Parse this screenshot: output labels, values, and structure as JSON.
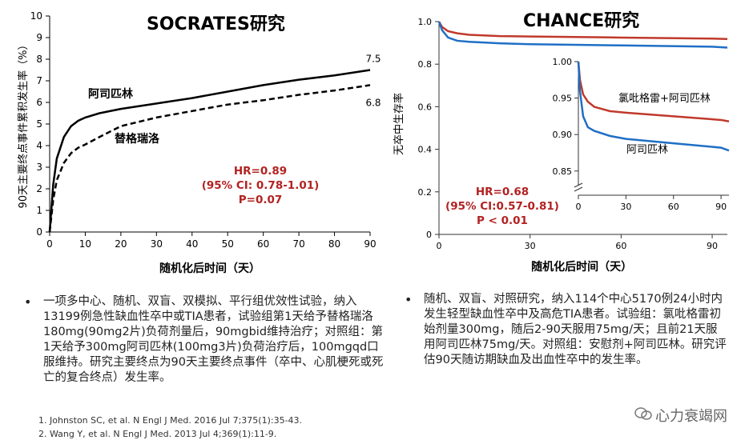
{
  "left": {
    "title": "SOCRATES研究",
    "chart_data": {
      "type": "line",
      "xlabel": "随机化后时间（天）",
      "ylabel": "90天主要终点事件累积发生率（%）",
      "xlim": [
        0,
        90
      ],
      "ylim": [
        0,
        10
      ],
      "xticks": [
        0,
        10,
        20,
        30,
        40,
        50,
        60,
        70,
        80,
        90
      ],
      "yticks": [
        0,
        1,
        2,
        3,
        4,
        5,
        6,
        7,
        8,
        9,
        10
      ],
      "series": [
        {
          "name": "阿司匹林",
          "style": "solid",
          "color": "#000000",
          "end_label": "7.5",
          "x": [
            0,
            1,
            2,
            4,
            6,
            8,
            10,
            14,
            20,
            30,
            40,
            50,
            60,
            70,
            80,
            90
          ],
          "y": [
            0,
            2.2,
            3.4,
            4.4,
            4.9,
            5.15,
            5.3,
            5.5,
            5.7,
            5.95,
            6.2,
            6.5,
            6.8,
            7.05,
            7.25,
            7.5
          ]
        },
        {
          "name": "替格瑞洛",
          "style": "dashed",
          "color": "#000000",
          "end_label": "6.8",
          "x": [
            0,
            1,
            2,
            4,
            6,
            8,
            10,
            14,
            20,
            30,
            40,
            50,
            60,
            70,
            80,
            90
          ],
          "y": [
            0,
            1.5,
            2.4,
            3.2,
            3.65,
            3.9,
            4.05,
            4.4,
            4.9,
            5.3,
            5.6,
            5.9,
            6.1,
            6.35,
            6.55,
            6.8
          ]
        }
      ],
      "annotation": {
        "lines": [
          "HR=0.89",
          "(95% CI: 0.78-1.01)",
          "P=0.07"
        ],
        "color": "#b22222"
      }
    },
    "bullet": "一项多中心、随机、双盲、双模拟、平行组优效性试验，纳入13199例急性缺血性卒中或TIA患者，试验组第1天给予替格瑞洛180mg(90mg2片)负荷剂量后，90mgbid维持治疗；对照组：第1天给予300mg阿司匹林(100mg3片)负荷治疗后，100mgqd口服维持。研究主要终点为90天主要终点事件（卒中、心肌梗死或死亡的复合终点）发生率。",
    "refs": [
      "1.   Johnston SC, et al. N Engl J Med. 2016 Jul 7;375(1):35-43.",
      "2.   Wang Y, et al. N Engl J Med. 2013 Jul 4;369(1):11-9."
    ]
  },
  "right": {
    "title": "CHANCE研究",
    "chart_data": {
      "type": "line",
      "xlabel": "随机化后时间（天）",
      "ylabel": "无卒中生存率",
      "xlim": [
        0,
        95
      ],
      "ylim": [
        0,
        1.0
      ],
      "xticks": [
        0,
        30,
        60,
        90
      ],
      "yticks": [
        "0",
        "0.2",
        "0.4",
        "0.6",
        "0.8",
        "1.0"
      ],
      "series": [
        {
          "name": "氯吡格雷+阿司匹林",
          "color": "#c0392b",
          "x": [
            0,
            1,
            3,
            6,
            10,
            20,
            30,
            60,
            90,
            95
          ],
          "y": [
            1.0,
            0.975,
            0.955,
            0.945,
            0.938,
            0.932,
            0.93,
            0.925,
            0.92,
            0.918
          ]
        },
        {
          "name": "阿司匹林",
          "color": "#1f6fc5",
          "x": [
            0,
            1,
            3,
            6,
            10,
            20,
            30,
            60,
            90,
            95
          ],
          "y": [
            1.0,
            0.96,
            0.925,
            0.91,
            0.905,
            0.898,
            0.894,
            0.888,
            0.882,
            0.878
          ]
        }
      ],
      "inset": {
        "xticks": [
          0,
          30,
          60,
          90
        ],
        "yticks": [
          "0.85",
          "0.90",
          "0.95",
          "1.00"
        ],
        "ylim": [
          0.83,
          1.0
        ],
        "labels": {
          "combo": "氯吡格雷+阿司匹林",
          "aspirin": "阿司匹林"
        }
      },
      "annotation": {
        "lines": [
          "HR=0.68",
          "(95% CI:0.57-0.81)",
          "P < 0.01"
        ],
        "color": "#b22222"
      }
    },
    "bullet": "随机、双盲、对照研究，纳入114个中心5170例24小时内发生轻型缺血性卒中及高危TIA患者。试验组：氯吡格雷初始剂量300mg，随后2-90天服用75mg/天；且前21天服用阿司匹林75mg/天。对照组：安慰剂+阿司匹林。研究评估90天随访期缺血及出血性卒中的发生率。"
  },
  "bullet_symbol": "•",
  "watermark": "心力衰竭网"
}
